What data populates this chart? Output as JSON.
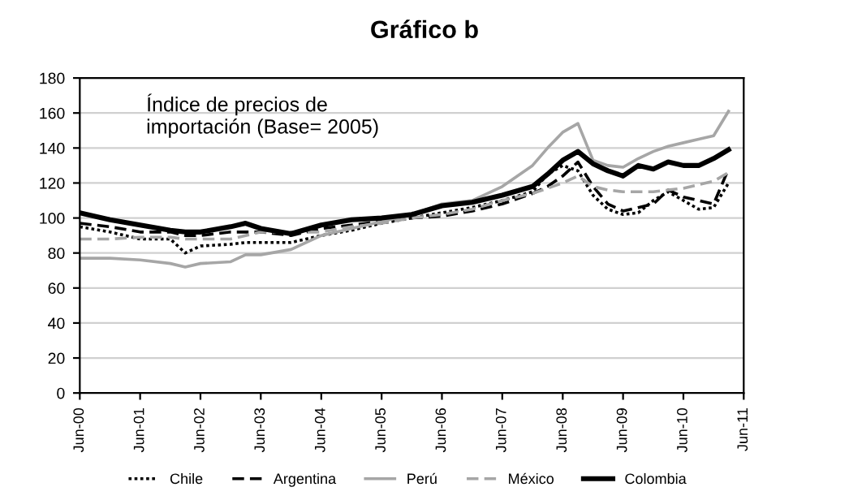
{
  "chart_data": {
    "type": "line",
    "title": "Gráfico b",
    "annotations": [
      "Índice de precios de\nimportación (Base= 2005)"
    ],
    "x": [
      "2000-06",
      "2000-12",
      "2001-06",
      "2001-12",
      "2002-03",
      "2002-06",
      "2002-12",
      "2003-03",
      "2003-06",
      "2003-12",
      "2004-06",
      "2004-12",
      "2005-06",
      "2005-12",
      "2006-06",
      "2006-12",
      "2007-06",
      "2007-12",
      "2008-03",
      "2008-06",
      "2008-09",
      "2008-12",
      "2009-03",
      "2009-06",
      "2009-09",
      "2009-12",
      "2010-03",
      "2010-06",
      "2010-09",
      "2010-12",
      "2011-03"
    ],
    "series": [
      {
        "name": "Chile",
        "color": "#000000",
        "line_style": "dotted",
        "values": [
          95,
          92,
          88,
          88,
          80,
          84,
          85,
          86,
          86,
          86,
          90,
          93,
          97,
          100,
          103,
          106,
          110,
          115,
          125,
          130,
          127,
          113,
          105,
          102,
          103,
          110,
          115,
          110,
          105,
          106,
          120
        ]
      },
      {
        "name": "Argentina",
        "color": "#000000",
        "line_style": "dashed",
        "values": [
          97,
          95,
          92,
          92,
          90,
          90,
          92,
          92,
          92,
          90,
          94,
          96,
          98,
          100,
          101,
          104,
          108,
          114,
          118,
          124,
          132,
          118,
          108,
          104,
          106,
          108,
          116,
          112,
          110,
          108,
          128
        ]
      },
      {
        "name": "Perú",
        "color": "#a6a6a6",
        "line_style": "solid",
        "values": [
          77,
          77,
          76,
          74,
          72,
          74,
          75,
          79,
          79,
          82,
          90,
          94,
          98,
          102,
          108,
          110,
          118,
          130,
          140,
          149,
          154,
          133,
          130,
          129,
          134,
          138,
          141,
          143,
          145,
          147,
          161
        ]
      },
      {
        "name": "México",
        "color": "#a6a6a6",
        "line_style": "dashed",
        "values": [
          88,
          88,
          89,
          89,
          88,
          88,
          88,
          90,
          92,
          92,
          92,
          95,
          97,
          100,
          102,
          105,
          110,
          114,
          117,
          120,
          124,
          118,
          116,
          115,
          115,
          115,
          116,
          117,
          119,
          121,
          126
        ]
      },
      {
        "name": "Colombia",
        "color": "#000000",
        "line_style": "solid",
        "values": [
          103,
          99,
          96,
          93,
          92,
          92,
          95,
          97,
          94,
          91,
          96,
          99,
          100,
          102,
          107,
          109,
          113,
          118,
          125,
          133,
          138,
          131,
          127,
          124,
          130,
          128,
          132,
          130,
          130,
          134,
          139
        ]
      }
    ],
    "xlim": [
      "2000-06",
      "2011-06"
    ],
    "xticks": [
      {
        "value": "2000-06",
        "label": "Jun-00"
      },
      {
        "value": "2001-06",
        "label": "Jun-01"
      },
      {
        "value": "2002-06",
        "label": "Jun-02"
      },
      {
        "value": "2003-06",
        "label": "Jun-03"
      },
      {
        "value": "2004-06",
        "label": "Jun-04"
      },
      {
        "value": "2005-06",
        "label": "Jun-05"
      },
      {
        "value": "2006-06",
        "label": "Jun-06"
      },
      {
        "value": "2007-06",
        "label": "Jun-07"
      },
      {
        "value": "2008-06",
        "label": "Jun-08"
      },
      {
        "value": "2009-06",
        "label": "Jun-09"
      },
      {
        "value": "2010-06",
        "label": "Jun-10"
      },
      {
        "value": "2011-06",
        "label": "Jun-11"
      }
    ],
    "ylim": [
      0,
      180
    ],
    "yticks": [
      0,
      20,
      40,
      60,
      80,
      100,
      120,
      140,
      160,
      180
    ],
    "grid": "y",
    "legend": "bottom"
  }
}
